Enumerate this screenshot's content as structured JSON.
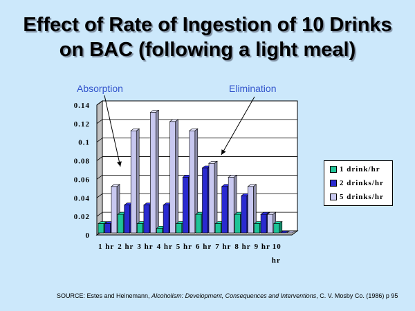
{
  "title_lines": [
    "Effect of Rate of Ingestion of 10 Drinks",
    "on BAC (following a light meal)"
  ],
  "annotations": {
    "absorption": "Absorption",
    "elimination": "Elimination"
  },
  "source": {
    "prefix": "SOURCE: Estes and Heinemann, ",
    "italic": "Alcoholism: Development, Consequences and Interventions",
    "suffix": ", C. V. Mosby Co. (1986) p 95"
  },
  "colors": {
    "background": "#cce8fb",
    "annotation_text": "#3355cc"
  },
  "chart_data": {
    "type": "bar",
    "categories": [
      "1 hr",
      "2 hr",
      "3 hr",
      "4 hr",
      "5 hr",
      "6 hr",
      "7 hr",
      "8 hr",
      "9 hr",
      "10 hr"
    ],
    "ylim": [
      0,
      0.14
    ],
    "yticks": [
      "0",
      "0.02",
      "0.04",
      "0.06",
      "0.08",
      "0.1",
      "0.12",
      "0.14"
    ],
    "grid": true,
    "legend_position": "right",
    "series": [
      {
        "name": "1 drink/hr",
        "color": "#1fc498",
        "values": [
          0.01,
          0.02,
          0.01,
          0.005,
          0.01,
          0.02,
          0.01,
          0.02,
          0.01,
          0.01
        ]
      },
      {
        "name": "2 drinks/hr",
        "color": "#2a2ad0",
        "values": [
          0.01,
          0.03,
          0.03,
          0.03,
          0.06,
          0.07,
          0.05,
          0.04,
          0.02,
          0
        ]
      },
      {
        "name": "5 drinks/hr",
        "color": "#c8c8f0",
        "values": [
          0.05,
          0.11,
          0.13,
          0.12,
          0.11,
          0.075,
          0.06,
          0.05,
          0.02,
          0
        ]
      }
    ]
  }
}
